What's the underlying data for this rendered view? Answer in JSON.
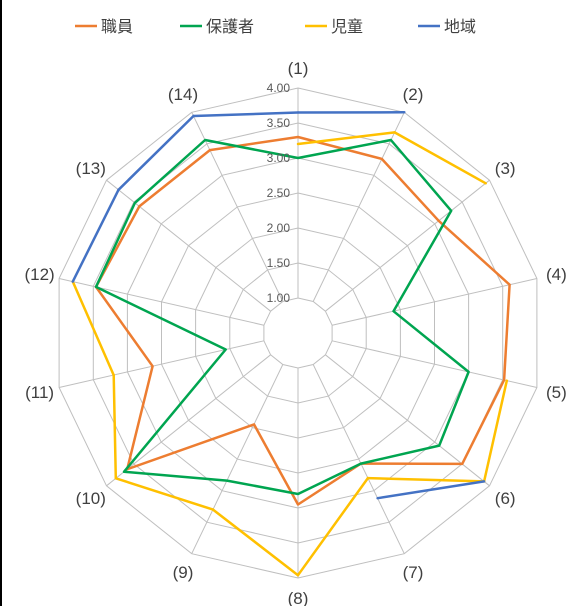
{
  "chart_data": {
    "type": "radar",
    "categories": [
      "(1)",
      "(2)",
      "(3)",
      "(4)",
      "(5)",
      "(6)",
      "(7)",
      "(8)",
      "(9)",
      "(10)",
      "(11)",
      "(12)",
      "(13)",
      "(14)"
    ],
    "rlim": [
      0.5,
      4.0
    ],
    "ticks": [
      "1.00",
      "1.50",
      "2.00",
      "2.50",
      "3.00",
      "3.50",
      "4.00"
    ],
    "tick_values": [
      1.0,
      1.5,
      2.0,
      2.5,
      3.0,
      3.5,
      4.0
    ],
    "grid_min": 1.0,
    "grid": true,
    "legend_position": "top",
    "series": [
      {
        "name": "職員",
        "color": "#ED7D31",
        "values": [
          3.3,
          3.26,
          3.07,
          3.6,
          3.52,
          3.5,
          2.57,
          2.95,
          1.95,
          3.62,
          2.63,
          3.46,
          3.4,
          3.4
        ],
        "connect_gaps": true
      },
      {
        "name": "保護者",
        "color": "#00A550",
        "values": [
          3.0,
          3.56,
          3.3,
          1.9,
          3.0,
          3.08,
          2.57,
          2.8,
          2.84,
          3.68,
          1.56,
          3.46,
          3.48,
          3.56
        ],
        "connect_gaps": true
      },
      {
        "name": "児童",
        "color": "#FFC000",
        "values": [
          3.2,
          3.68,
          3.93,
          null,
          3.56,
          3.9,
          2.8,
          3.96,
          3.3,
          3.83,
          3.2,
          3.8,
          null,
          null
        ],
        "connect_gaps": false
      },
      {
        "name": "地域",
        "color": "#4472C4",
        "values": [
          3.65,
          4.0,
          null,
          null,
          null,
          3.9,
          3.12,
          null,
          null,
          null,
          null,
          3.8,
          3.78,
          3.94
        ],
        "connect_gaps": false
      }
    ]
  }
}
